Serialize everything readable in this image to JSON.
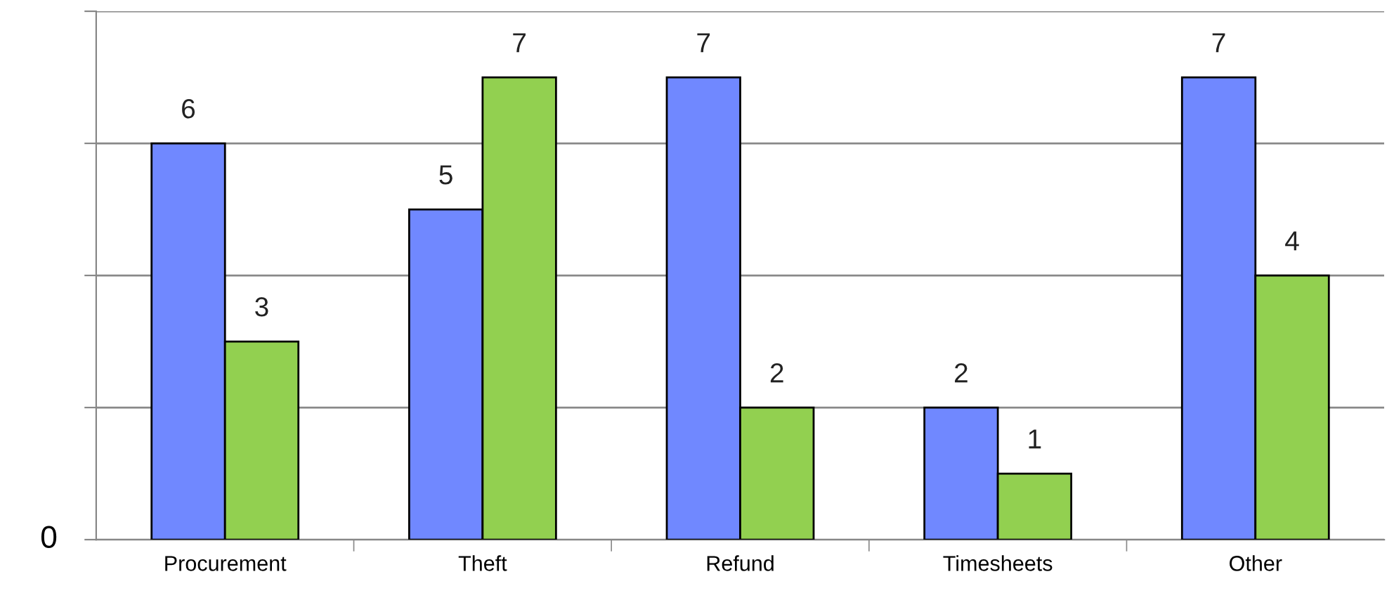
{
  "chart_data": {
    "type": "bar",
    "categories": [
      "Procurement",
      "Theft",
      "Refund",
      "Timesheets",
      "Other"
    ],
    "series": [
      {
        "color": "#7088ff",
        "values": [
          6,
          5,
          7,
          2,
          7
        ]
      },
      {
        "color": "#92d050",
        "values": [
          3,
          7,
          2,
          1,
          4
        ]
      }
    ],
    "ylim": [
      0,
      8
    ],
    "annotations": [
      "0"
    ],
    "yticks": [
      {
        "value": 0,
        "label": null
      },
      {
        "value": 2,
        "label": null
      },
      {
        "value": 4,
        "label": null
      },
      {
        "value": 6,
        "label": null
      },
      {
        "value": 8,
        "label": null
      }
    ],
    "grid": "y",
    "data_labels": true,
    "legend": false
  }
}
